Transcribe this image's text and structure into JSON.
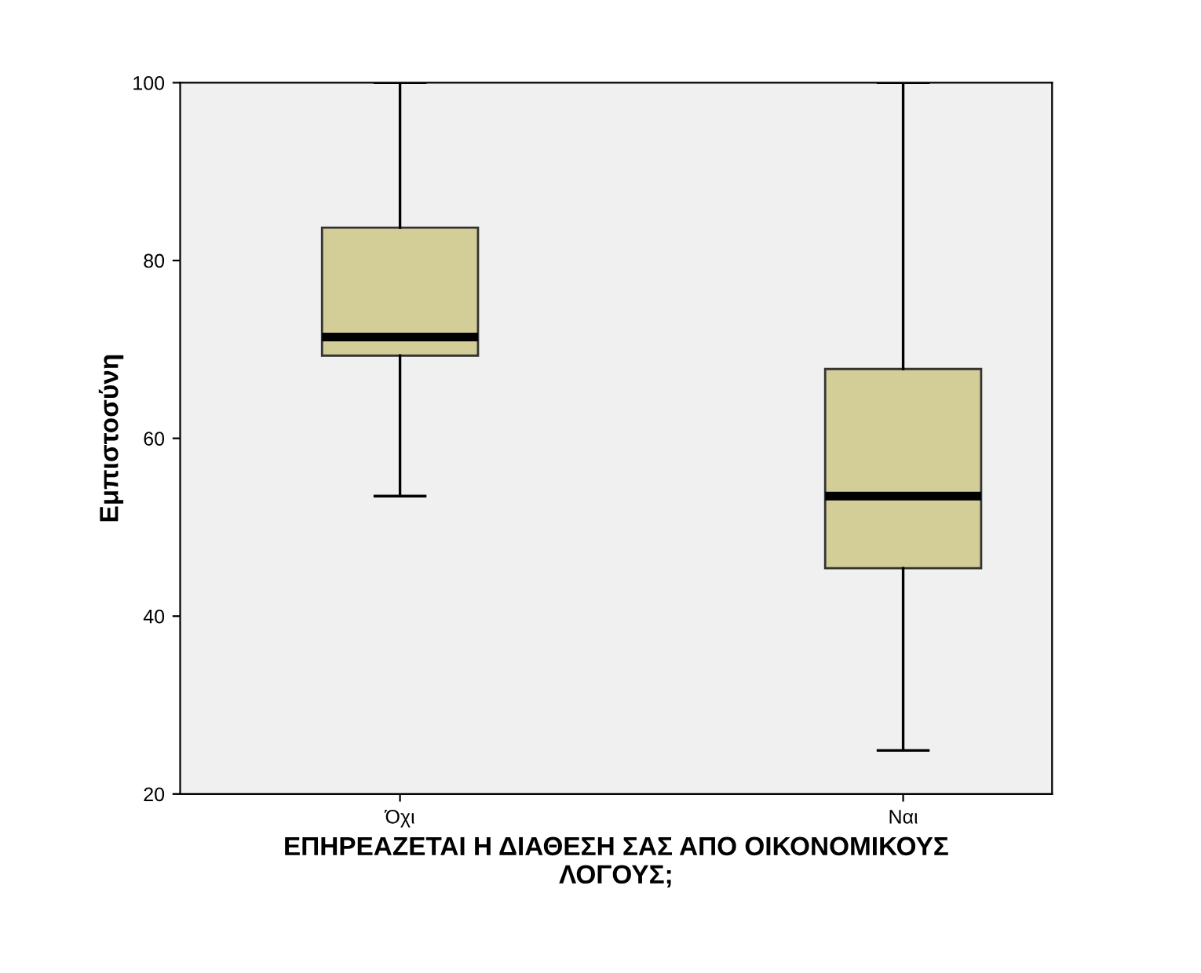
{
  "chart_data": {
    "type": "box",
    "categories": [
      "Όχι",
      "Ναι"
    ],
    "boxes": [
      {
        "low": 53.5,
        "q1": 69.3,
        "median": 71.4,
        "q3": 83.7,
        "high": 100
      },
      {
        "low": 24.9,
        "q1": 45.4,
        "median": 53.5,
        "q3": 67.8,
        "high": 100
      }
    ],
    "color": "#d3ce97",
    "xlabel": "ΕΠΗΡΕΑΖΕΤΑΙ Η ΔΙΑΘΕΣΗ ΣΑΣ ΑΠΟ ΟΙΚΟΝΟΜΙΚΟΥΣ\nΛΟΓΟΥΣ;",
    "ylabel": "Εμπιστοσύνη",
    "ylim": [
      20,
      100
    ],
    "yticks": [
      20,
      40,
      60,
      80,
      100
    ],
    "grid": false
  }
}
